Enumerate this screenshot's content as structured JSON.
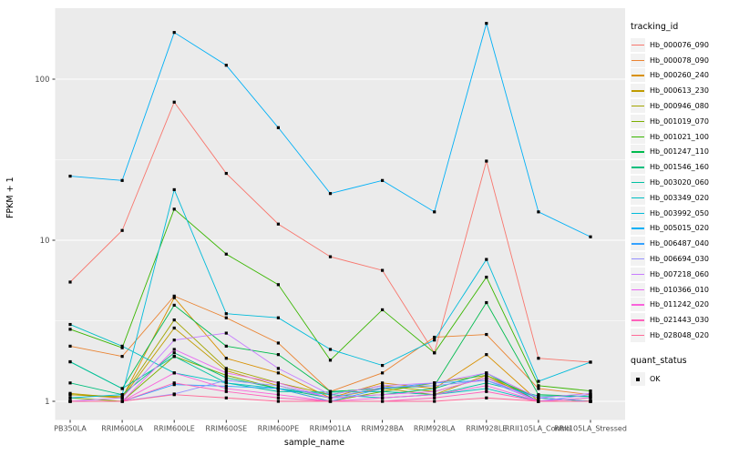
{
  "chart_data": {
    "type": "line",
    "title": "",
    "xlabel": "sample_name",
    "ylabel": "FPKM + 1",
    "y_scale": "log10",
    "ylim": [
      0.95,
      260
    ],
    "y_ticks": [
      1,
      10,
      100
    ],
    "grid": "ggplot-gray-panel-white-gridlines",
    "legend_position": "right",
    "point_shape": "filled-square",
    "point_color": "#000000",
    "panel_bg": "#EBEBEB",
    "tick_label_color": "#4D4D4D",
    "categories": [
      "PB350LA",
      "RRIM600LA",
      "RRIM600LE",
      "RRIM600SE",
      "RRIM600PE",
      "RRIM901LA",
      "RRIM928BA",
      "RRIM928LA",
      "RRIM928LE",
      "RRII105LA_Control",
      "RRII105LA_Stressed"
    ],
    "legend": {
      "tracking_title": "tracking_id",
      "quant_title": "quant_status",
      "quant_value": "OK"
    },
    "series": [
      {
        "name": "Hb_000076_090",
        "color": "#F8766D",
        "values": [
          5.5,
          11.5,
          72,
          26,
          12.6,
          7.9,
          6.5,
          2.0,
          31,
          1.85,
          1.75
        ]
      },
      {
        "name": "Hb_000078_090",
        "color": "#EA8331",
        "values": [
          2.2,
          1.9,
          4.5,
          3.3,
          2.3,
          1.15,
          1.5,
          2.5,
          2.6,
          1.2,
          1.1
        ]
      },
      {
        "name": "Hb_000260_240",
        "color": "#D89000",
        "values": [
          1.1,
          1.05,
          4.4,
          1.85,
          1.5,
          1.05,
          1.3,
          1.2,
          1.95,
          1.0,
          1.05
        ]
      },
      {
        "name": "Hb_000613_230",
        "color": "#C09B00",
        "values": [
          1.12,
          1.05,
          2.85,
          1.55,
          1.25,
          1.05,
          1.2,
          1.1,
          1.45,
          1.0,
          1.0
        ]
      },
      {
        "name": "Hb_000946_080",
        "color": "#A3A500",
        "values": [
          1.1,
          1.07,
          3.2,
          1.6,
          1.3,
          1.1,
          1.25,
          1.15,
          1.4,
          1.05,
          1.0
        ]
      },
      {
        "name": "Hb_001019_070",
        "color": "#7CAE00",
        "values": [
          1.05,
          1.0,
          1.9,
          1.45,
          1.2,
          1.0,
          1.15,
          1.3,
          1.45,
          1.05,
          1.0
        ]
      },
      {
        "name": "Hb_001021_100",
        "color": "#39B600",
        "values": [
          2.8,
          2.15,
          15.6,
          8.2,
          5.3,
          1.8,
          3.7,
          2.0,
          5.9,
          1.25,
          1.16
        ]
      },
      {
        "name": "Hb_001247_110",
        "color": "#00BB4E",
        "values": [
          1.76,
          1.2,
          3.95,
          2.2,
          1.95,
          1.15,
          1.2,
          1.25,
          4.1,
          1.1,
          1.07
        ]
      },
      {
        "name": "Hb_001546_160",
        "color": "#00BF7D",
        "values": [
          1.3,
          1.1,
          2.0,
          1.4,
          1.2,
          1.05,
          1.1,
          1.2,
          1.5,
          1.0,
          1.0
        ]
      },
      {
        "name": "Hb_003020_060",
        "color": "#00C1A3",
        "values": [
          1.76,
          1.2,
          1.9,
          1.3,
          1.15,
          1.14,
          1.15,
          1.1,
          1.3,
          1.08,
          1.07
        ]
      },
      {
        "name": "Hb_003349_020",
        "color": "#00BFC4",
        "values": [
          3.0,
          2.2,
          1.5,
          1.3,
          1.2,
          1.1,
          1.05,
          1.1,
          1.2,
          1.0,
          1.0
        ]
      },
      {
        "name": "Hb_003992_050",
        "color": "#00BBDA",
        "values": [
          1.05,
          1.1,
          20.6,
          3.5,
          3.3,
          2.1,
          1.67,
          2.4,
          7.6,
          1.33,
          1.75
        ]
      },
      {
        "name": "Hb_005015_020",
        "color": "#00B0F6",
        "values": [
          25,
          23.5,
          195,
          122,
          50,
          19.5,
          23.5,
          15,
          222,
          15,
          10.5
        ]
      },
      {
        "name": "Hb_006487_040",
        "color": "#35A2FF",
        "values": [
          1.0,
          1.0,
          1.27,
          1.24,
          1.2,
          1.0,
          1.2,
          1.3,
          1.35,
          1.05,
          1.0
        ]
      },
      {
        "name": "Hb_006694_030",
        "color": "#9590FF",
        "values": [
          1.0,
          1.0,
          1.11,
          1.35,
          1.25,
          1.05,
          1.22,
          1.25,
          1.35,
          1.0,
          1.1
        ]
      },
      {
        "name": "Hb_007218_060",
        "color": "#C77CFF",
        "values": [
          1.0,
          1.05,
          2.4,
          2.65,
          1.6,
          1.1,
          1.25,
          1.3,
          1.5,
          1.05,
          1.12
        ]
      },
      {
        "name": "Hb_010366_010",
        "color": "#E76BF3",
        "values": [
          1.0,
          1.0,
          2.1,
          1.5,
          1.3,
          1.05,
          1.1,
          1.15,
          1.4,
          1.0,
          1.05
        ]
      },
      {
        "name": "Hb_011242_020",
        "color": "#FA62DB",
        "values": [
          1.0,
          1.0,
          1.5,
          1.2,
          1.1,
          1.0,
          1.05,
          1.1,
          1.25,
          1.0,
          1.0
        ]
      },
      {
        "name": "Hb_021443_030",
        "color": "#FF62BC",
        "values": [
          1.0,
          1.0,
          1.3,
          1.15,
          1.05,
          1.0,
          1.0,
          1.05,
          1.15,
          1.0,
          1.0
        ]
      },
      {
        "name": "Hb_028048_020",
        "color": "#FF6A98",
        "values": [
          1.0,
          1.0,
          1.1,
          1.05,
          1.0,
          1.0,
          1.0,
          1.0,
          1.05,
          1.0,
          1.0
        ]
      }
    ]
  }
}
